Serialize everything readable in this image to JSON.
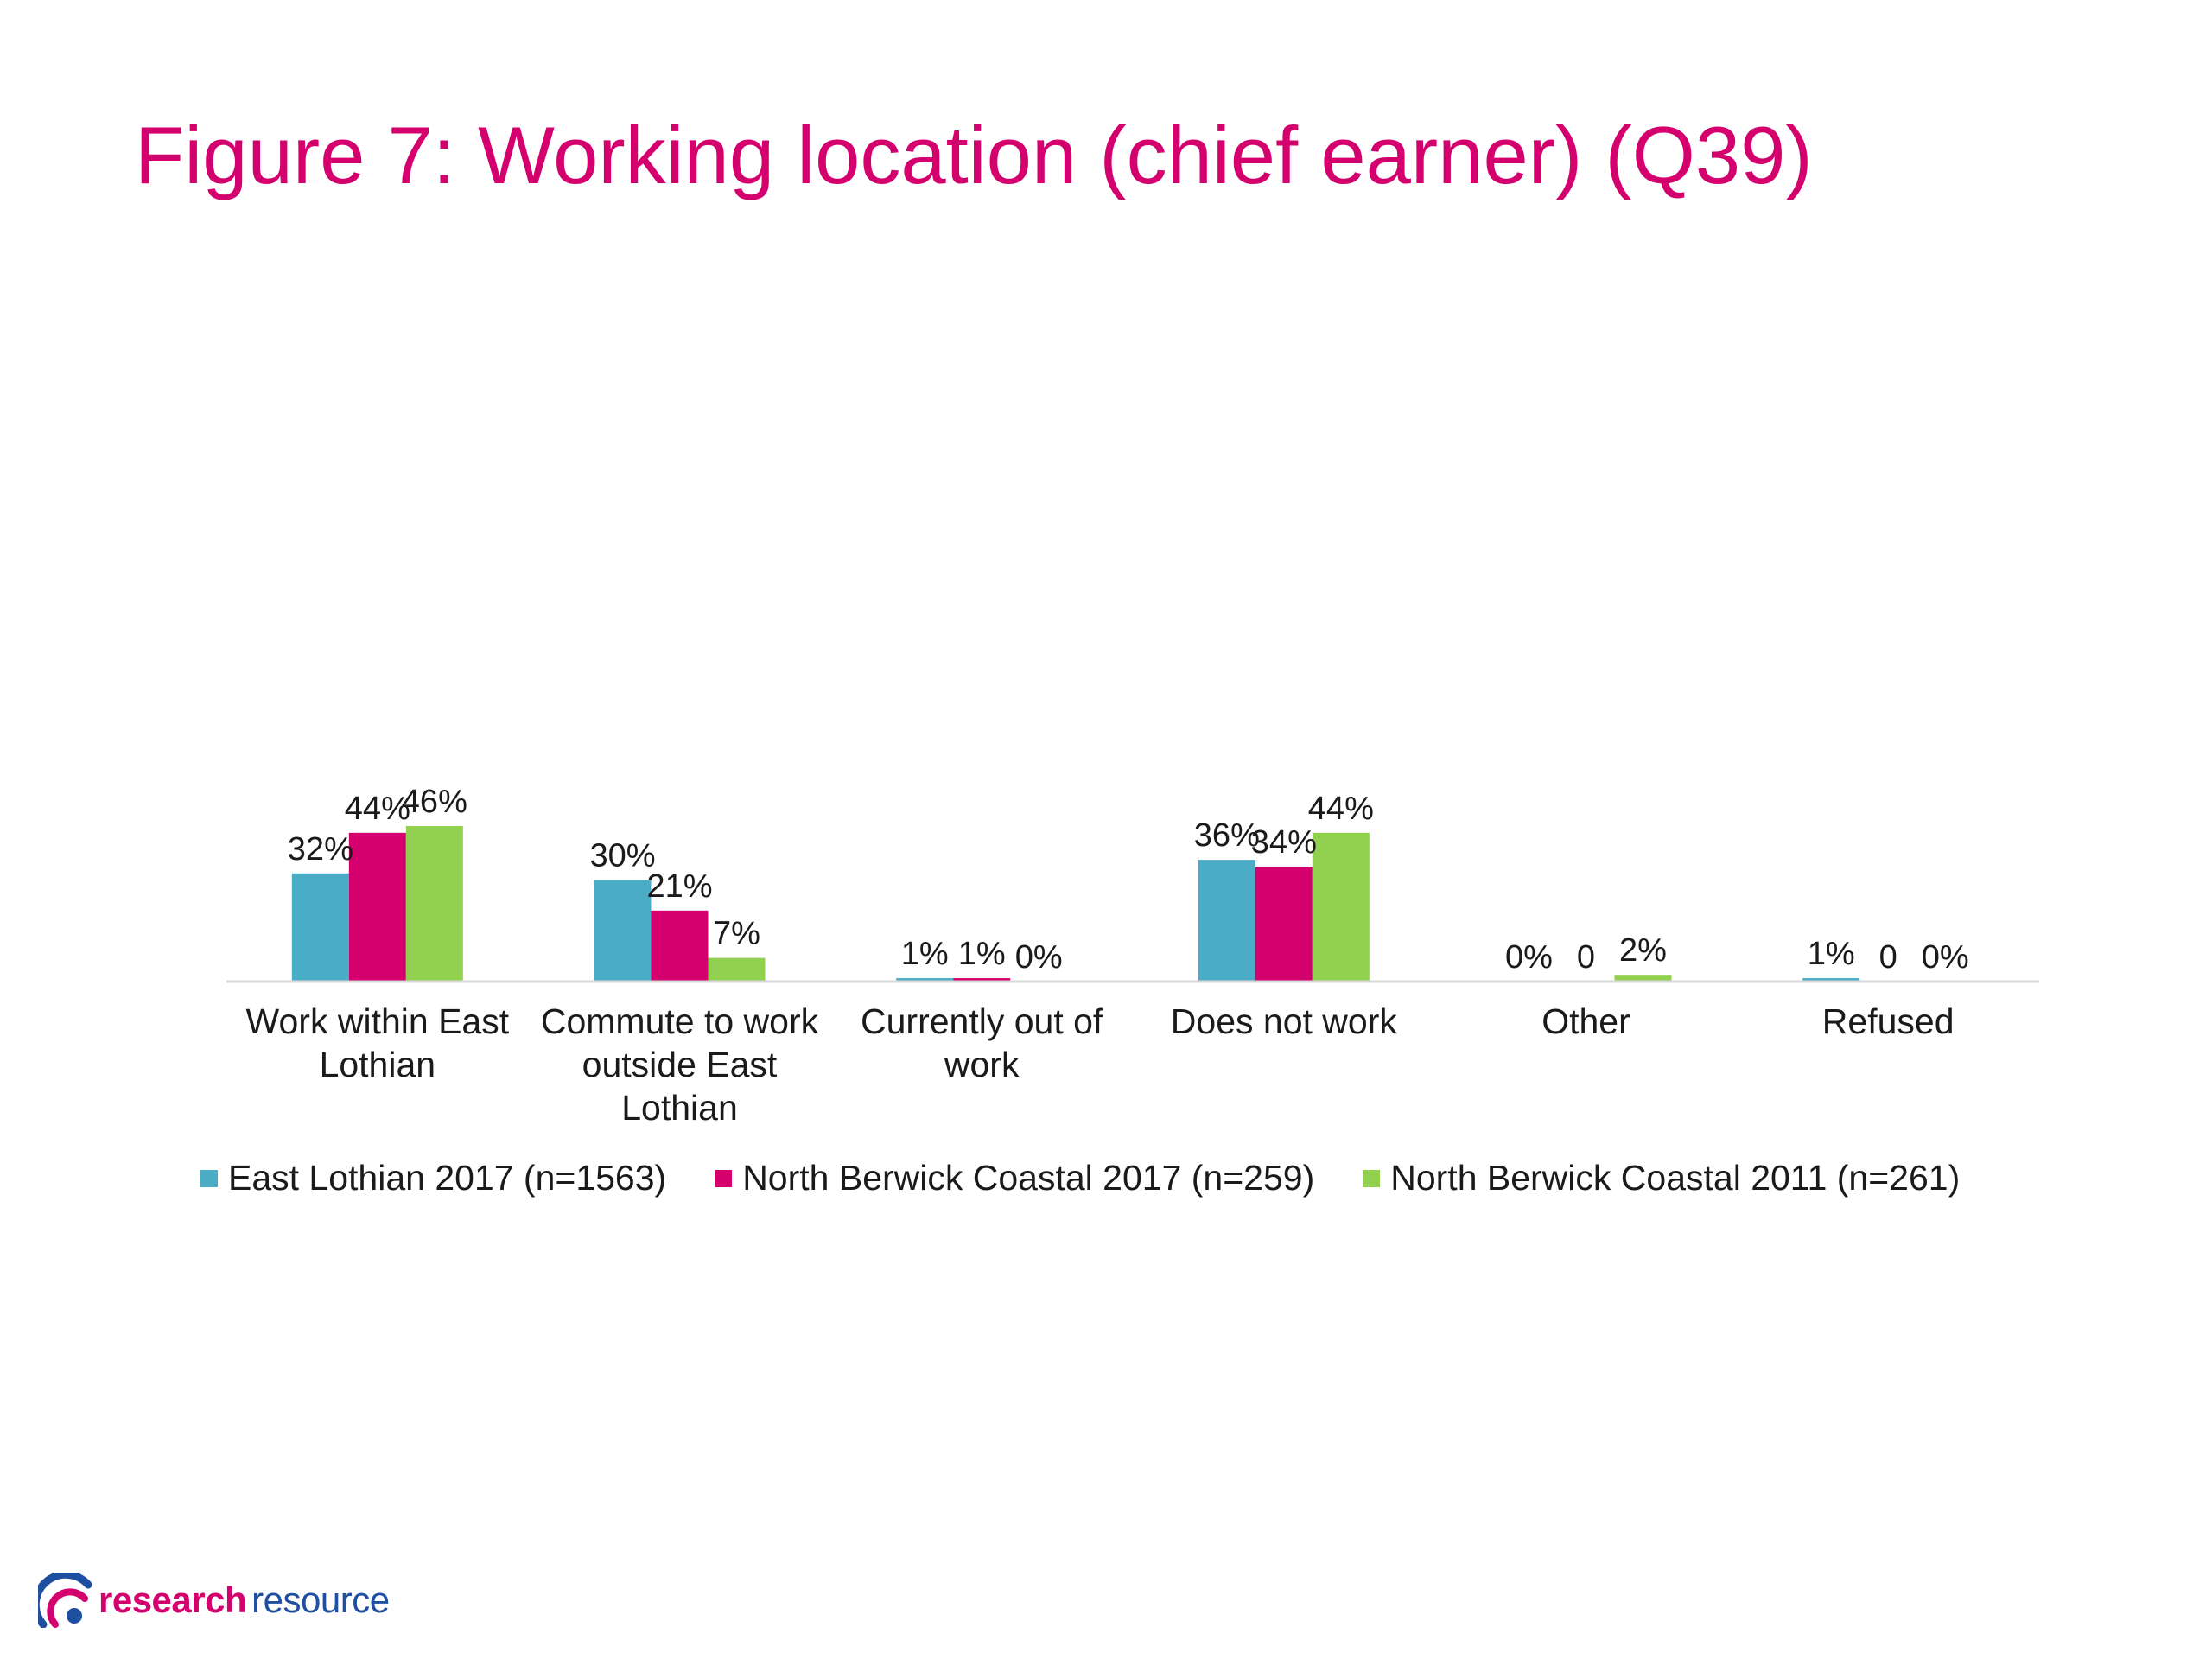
{
  "title": "Figure 7: Working location (chief earner) (Q39)",
  "chart_data": {
    "type": "bar",
    "categories": [
      [
        "Work within East",
        "Lothian"
      ],
      [
        "Commute to work",
        "outside East",
        "Lothian"
      ],
      [
        "Currently out of",
        "work"
      ],
      [
        "Does not work"
      ],
      [
        "Other"
      ],
      [
        "Refused"
      ]
    ],
    "series": [
      {
        "name": "East Lothian 2017 (n=1563)",
        "color": "#4bacc6",
        "values": [
          32,
          30,
          1,
          36,
          0,
          1
        ],
        "labels": [
          "32%",
          "30%",
          "1%",
          "36%",
          "0%",
          "1%"
        ]
      },
      {
        "name": "North Berwick Coastal 2017 (n=259)",
        "color": "#d4006e",
        "values": [
          44,
          21,
          1,
          34,
          0,
          0
        ],
        "labels": [
          "44%",
          "21%",
          "1%",
          "34%",
          "0",
          "0"
        ]
      },
      {
        "name": "North Berwick Coastal 2011 (n=261)",
        "color": "#92d050",
        "values": [
          46,
          7,
          0,
          44,
          2,
          0
        ],
        "labels": [
          "46%",
          "7%",
          "0%",
          "44%",
          "2%",
          "0%"
        ]
      }
    ],
    "ylim": [
      0,
      46
    ],
    "grid": false,
    "legend": "bottom"
  },
  "logo": {
    "icon": "research-resource-logo-icon",
    "word_a": "research",
    "word_b": "resource"
  }
}
